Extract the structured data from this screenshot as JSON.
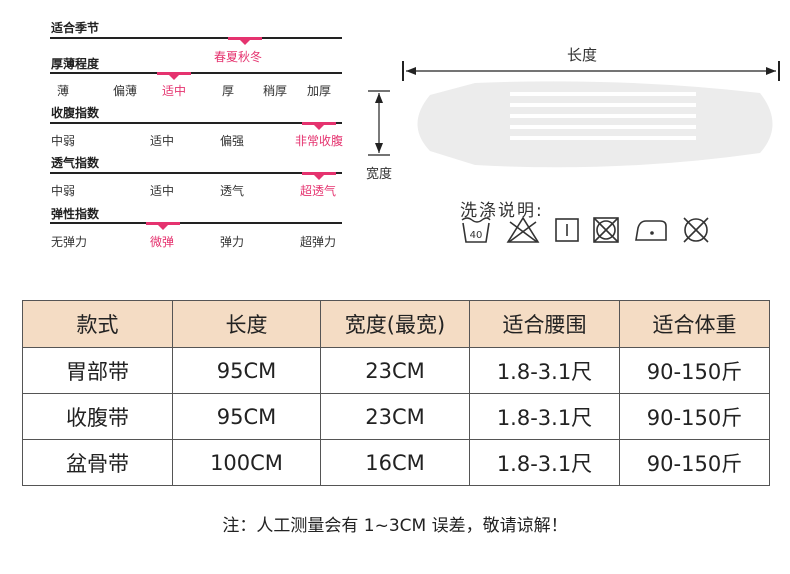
{
  "attributes": [
    {
      "title": "适合季节",
      "options": [
        "春夏秋冬"
      ],
      "selected": 0
    },
    {
      "title": "厚薄程度",
      "options": [
        "薄",
        "偏薄",
        "适中",
        "厚",
        "稍厚",
        "加厚"
      ],
      "selected": 2
    },
    {
      "title": "收腹指数",
      "options": [
        "中弱",
        "适中",
        "偏强",
        "非常收腹"
      ],
      "selected": 3
    },
    {
      "title": "透气指数",
      "options": [
        "中弱",
        "适中",
        "透气",
        "超透气"
      ],
      "selected": 3
    },
    {
      "title": "弹性指数",
      "options": [
        "无弹力",
        "微弹",
        "弹力",
        "超弹力"
      ],
      "selected": 1
    }
  ],
  "diagram": {
    "length_label": "长度",
    "width_label": "宽度"
  },
  "care": {
    "title": "洗涤说明:",
    "symbols": [
      {
        "icon": "wash-40-icon",
        "text": "40"
      },
      {
        "icon": "no-bleach-icon"
      },
      {
        "icon": "line-dry-icon"
      },
      {
        "icon": "no-tumble-dry-icon"
      },
      {
        "icon": "iron-low-icon"
      },
      {
        "icon": "no-dry-clean-icon"
      }
    ]
  },
  "table": {
    "headers": [
      "款式",
      "长度",
      "宽度(最宽)",
      "适合腰围",
      "适合体重"
    ],
    "rows": [
      [
        "胃部带",
        "95CM",
        "23CM",
        "1.8-3.1尺",
        "90-150斤"
      ],
      [
        "收腹带",
        "95CM",
        "23CM",
        "1.8-3.1尺",
        "90-150斤"
      ],
      [
        "盆骨带",
        "100CM",
        "16CM",
        "1.8-3.1尺",
        "90-150斤"
      ]
    ]
  },
  "note": "注：人工测量会有 1~3CM 误差，敬请谅解！",
  "colors": {
    "accent": "#e5336f",
    "header_bg": "#f4dcc4",
    "line": "#222222"
  }
}
